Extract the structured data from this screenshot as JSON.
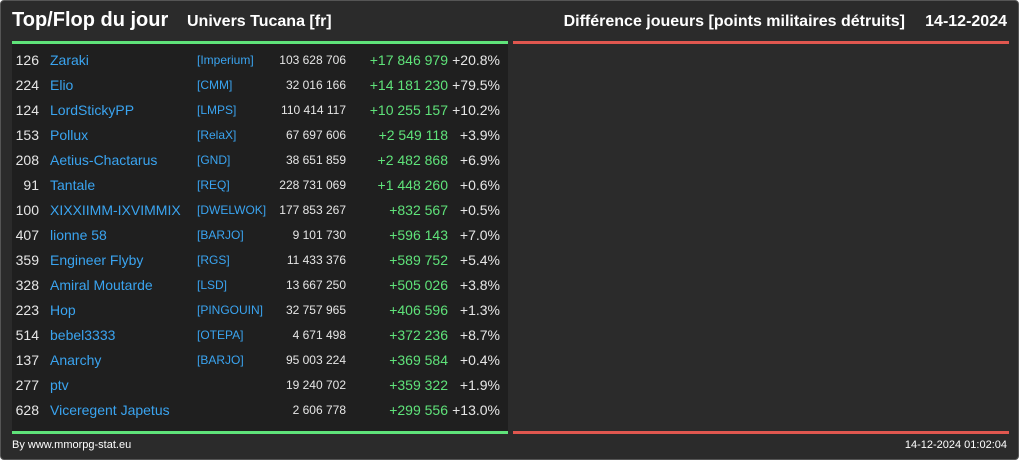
{
  "header": {
    "title": "Top/Flop du jour",
    "universe": "Univers Tucana [fr]",
    "metric": "Différence joueurs [points militaires détruits]",
    "date": "14-12-2024"
  },
  "colors": {
    "background": "#2b2b2b",
    "top_panel": "#1f1f1f",
    "accent_green": "#5fe37a",
    "accent_red": "#e0574f",
    "link_blue": "#3aa4f0"
  },
  "top": [
    {
      "rank": "126",
      "name": "Zaraki",
      "alliance": "[Imperium]",
      "score": "103 628 706",
      "diff": "+17 846 979",
      "pct": "+20.8%"
    },
    {
      "rank": "224",
      "name": "Elio",
      "alliance": "[CMM]",
      "score": "32 016 166",
      "diff": "+14 181 230",
      "pct": "+79.5%"
    },
    {
      "rank": "124",
      "name": "LordStickyPP",
      "alliance": "[LMPS]",
      "score": "110 414 117",
      "diff": "+10 255 157",
      "pct": "+10.2%"
    },
    {
      "rank": "153",
      "name": "Pollux",
      "alliance": "[RelaX]",
      "score": "67 697 606",
      "diff": "+2 549 118",
      "pct": "+3.9%"
    },
    {
      "rank": "208",
      "name": "Aetius-Chactarus",
      "alliance": "[GND]",
      "score": "38 651 859",
      "diff": "+2 482 868",
      "pct": "+6.9%"
    },
    {
      "rank": "91",
      "name": "Tantale",
      "alliance": "[REQ]",
      "score": "228 731 069",
      "diff": "+1 448 260",
      "pct": "+0.6%"
    },
    {
      "rank": "100",
      "name": "XIXXIIMM-IXVIMMIX",
      "alliance": "[DWELWOK]",
      "score": "177 853 267",
      "diff": "+832 567",
      "pct": "+0.5%"
    },
    {
      "rank": "407",
      "name": "lionne 58",
      "alliance": "[BARJO]",
      "score": "9 101 730",
      "diff": "+596 143",
      "pct": "+7.0%"
    },
    {
      "rank": "359",
      "name": "Engineer Flyby",
      "alliance": "[RGS]",
      "score": "11 433 376",
      "diff": "+589 752",
      "pct": "+5.4%"
    },
    {
      "rank": "328",
      "name": "Amiral Moutarde",
      "alliance": "[LSD]",
      "score": "13 667 250",
      "diff": "+505 026",
      "pct": "+3.8%"
    },
    {
      "rank": "223",
      "name": "Hop",
      "alliance": "[PINGOUIN]",
      "score": "32 757 965",
      "diff": "+406 596",
      "pct": "+1.3%"
    },
    {
      "rank": "514",
      "name": "bebel3333",
      "alliance": "[OTEPA]",
      "score": "4 671 498",
      "diff": "+372 236",
      "pct": "+8.7%"
    },
    {
      "rank": "137",
      "name": "Anarchy",
      "alliance": "[BARJO]",
      "score": "95 003 224",
      "diff": "+369 584",
      "pct": "+0.4%"
    },
    {
      "rank": "277",
      "name": "ptv",
      "alliance": "",
      "score": "19 240 702",
      "diff": "+359 322",
      "pct": "+1.9%"
    },
    {
      "rank": "628",
      "name": "Viceregent Japetus",
      "alliance": "",
      "score": "2 606 778",
      "diff": "+299 556",
      "pct": "+13.0%"
    }
  ],
  "footer": {
    "credit": "By www.mmorpg-stat.eu",
    "timestamp": "14-12-2024 01:02:04"
  }
}
